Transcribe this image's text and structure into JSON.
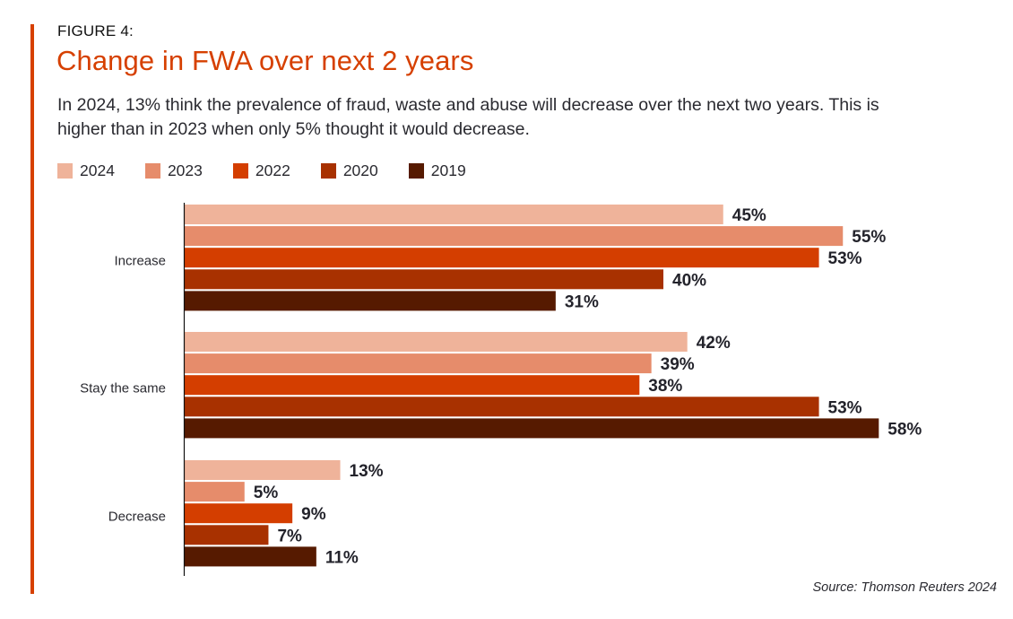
{
  "figure_label": "FIGURE 4:",
  "source": "Source: Thomson Reuters 2024",
  "colors": {
    "accent": "#d64000",
    "title": "#d64000",
    "2024": "#efb39a",
    "2023": "#e68c6b",
    "2022": "#d43e00",
    "2020": "#a83100",
    "2019": "#561a00"
  },
  "chart_data": {
    "type": "bar",
    "orientation": "horizontal",
    "title": "Change in FWA over next 2 years",
    "subtitle": "In 2024, 13% think the prevalence of fraud, waste and abuse will decrease over the next two years.  This is higher than in 2023 when only 5% thought it would decrease.",
    "xlabel": "",
    "ylabel": "",
    "xlim": [
      0,
      60
    ],
    "grid": false,
    "legend_position": "top-left",
    "categories": [
      "Increase",
      "Stay the same",
      "Decrease"
    ],
    "series": [
      {
        "name": "2024",
        "values": [
          45,
          42,
          13
        ],
        "labels": [
          "45%",
          "42%",
          "13%"
        ]
      },
      {
        "name": "2023",
        "values": [
          55,
          39,
          5
        ],
        "labels": [
          "55%",
          "39%",
          "5%"
        ]
      },
      {
        "name": "2022",
        "values": [
          53,
          38,
          9
        ],
        "labels": [
          "53%",
          "38%",
          "9%"
        ]
      },
      {
        "name": "2020",
        "values": [
          40,
          53,
          7
        ],
        "labels": [
          "40%",
          "53%",
          "7%"
        ]
      },
      {
        "name": "2019",
        "values": [
          31,
          58,
          11
        ],
        "labels": [
          "31%",
          "58%",
          "11%"
        ]
      }
    ]
  }
}
